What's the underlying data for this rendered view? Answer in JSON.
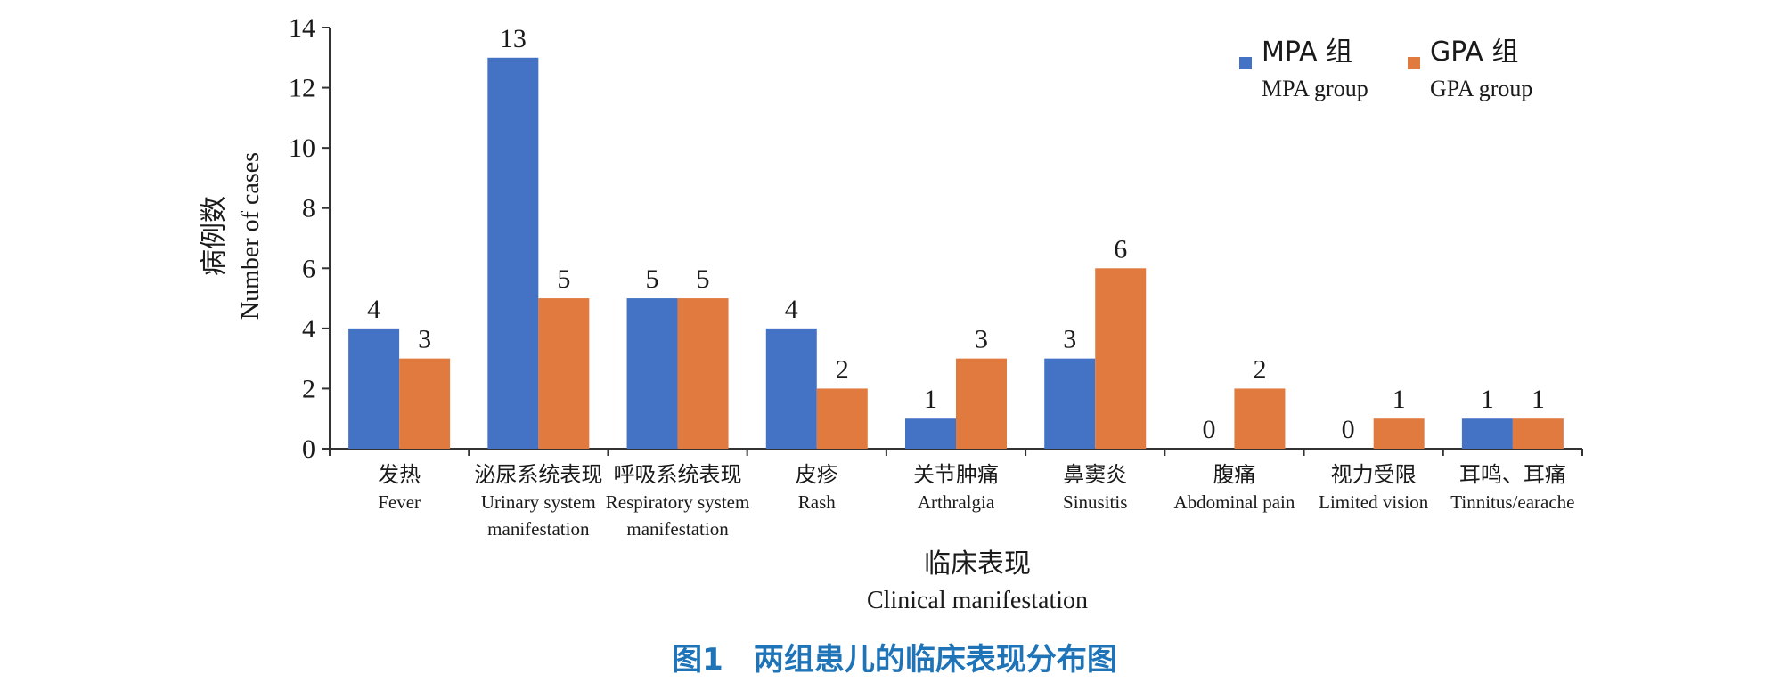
{
  "chart_data": {
    "type": "bar",
    "caption": "图1　两组患儿的临床表现分布图",
    "xlabel": "临床表现",
    "xlabel_en": "Clinical manifestation",
    "ylabel": "病例数",
    "ylabel_en": "Number of cases",
    "ylim": [
      0,
      14
    ],
    "yticks": [
      0,
      2,
      4,
      6,
      8,
      10,
      12,
      14
    ],
    "grid": false,
    "legend_position": "top-right",
    "categories": [
      {
        "zh": "发热",
        "en": [
          "Fever"
        ]
      },
      {
        "zh": "泌尿系统表现",
        "en": [
          "Urinary system",
          "manifestation"
        ]
      },
      {
        "zh": "呼吸系统表现",
        "en": [
          "Respiratory system",
          "manifestation"
        ]
      },
      {
        "zh": "皮疹",
        "en": [
          "Rash"
        ]
      },
      {
        "zh": "关节肿痛",
        "en": [
          "Arthralgia"
        ]
      },
      {
        "zh": "鼻窦炎",
        "en": [
          "Sinusitis"
        ]
      },
      {
        "zh": "腹痛",
        "en": [
          "Abdominal pain"
        ]
      },
      {
        "zh": "视力受限",
        "en": [
          "Limited vision"
        ]
      },
      {
        "zh": "耳鸣、耳痛",
        "en": [
          "Tinnitus/earache"
        ]
      }
    ],
    "series": [
      {
        "name": "MPA 组",
        "name_en": "MPA group",
        "color": "#4472c4",
        "values": [
          4,
          13,
          5,
          4,
          1,
          3,
          0,
          0,
          1
        ]
      },
      {
        "name": "GPA 组",
        "name_en": "GPA group",
        "color": "#e07a3f",
        "values": [
          3,
          5,
          5,
          2,
          3,
          6,
          2,
          1,
          1
        ]
      }
    ]
  }
}
